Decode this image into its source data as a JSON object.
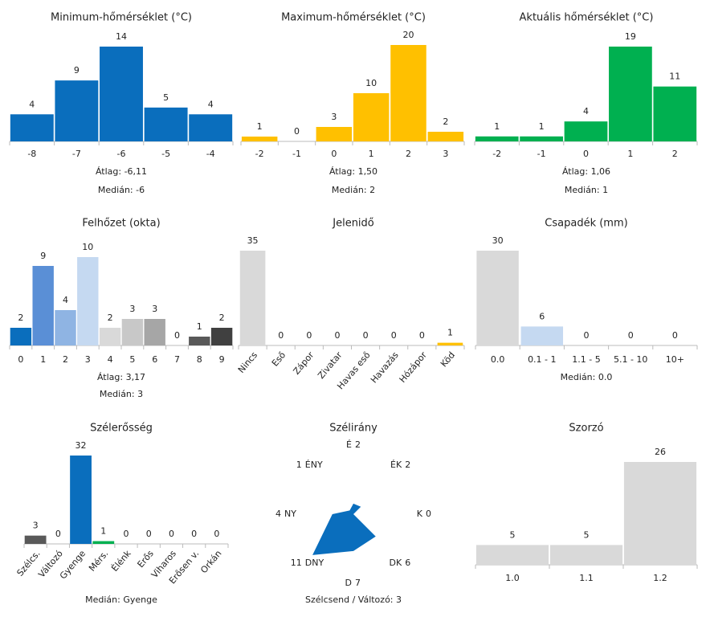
{
  "chart_data": [
    {
      "type": "bar",
      "title": "Minimum-hőmérséklet (°C)",
      "categories": [
        "-8",
        "-7",
        "-6",
        "-5",
        "-4"
      ],
      "values": [
        4,
        9,
        14,
        5,
        4
      ],
      "colors": [
        "#0a6ebd",
        "#0a6ebd",
        "#0a6ebd",
        "#0a6ebd",
        "#0a6ebd"
      ],
      "stats": [
        "Átlag: -6,11",
        "Medián: -6"
      ]
    },
    {
      "type": "bar",
      "title": "Maximum-hőmérséklet (°C)",
      "categories": [
        "-2",
        "-1",
        "0",
        "1",
        "2",
        "3"
      ],
      "values": [
        1,
        0,
        3,
        10,
        20,
        2
      ],
      "colors": [
        "#ffc000",
        "#ffc000",
        "#ffc000",
        "#ffc000",
        "#ffc000",
        "#ffc000"
      ],
      "stats": [
        "Átlag: 1,50",
        "Medián: 2"
      ]
    },
    {
      "type": "bar",
      "title": "Aktuális hőmérséklet (°C)",
      "categories": [
        "-2",
        "-1",
        "0",
        "1",
        "2"
      ],
      "values": [
        1,
        1,
        4,
        19,
        11
      ],
      "colors": [
        "#00b050",
        "#00b050",
        "#00b050",
        "#00b050",
        "#00b050"
      ],
      "stats": [
        "Átlag: 1,06",
        "Medián: 1"
      ]
    },
    {
      "type": "bar",
      "title": "Felhőzet (okta)",
      "categories": [
        "0",
        "1",
        "2",
        "3",
        "4",
        "5",
        "6",
        "7",
        "8",
        "9"
      ],
      "values": [
        2,
        9,
        4,
        10,
        2,
        3,
        3,
        0,
        1,
        2
      ],
      "colors": [
        "#0a6ebd",
        "#5a8fd6",
        "#8fb4e3",
        "#c5d9f1",
        "#d9d9d9",
        "#c8c8c8",
        "#a6a6a6",
        "#808080",
        "#595959",
        "#404040"
      ],
      "stats": [
        "Átlag: 3,17",
        "Medián: 3"
      ]
    },
    {
      "type": "bar",
      "title": "Jelenidő",
      "categories": [
        "Nincs",
        "Eső",
        "Zápor",
        "Zivatar",
        "Havas eső",
        "Havazás",
        "Hózápor",
        "Köd"
      ],
      "values": [
        35,
        0,
        0,
        0,
        0,
        0,
        0,
        1
      ],
      "colors": [
        "#d9d9d9",
        "#d9d9d9",
        "#d9d9d9",
        "#d9d9d9",
        "#d9d9d9",
        "#d9d9d9",
        "#d9d9d9",
        "#ffc000"
      ],
      "stats": []
    },
    {
      "type": "bar",
      "title": "Csapadék (mm)",
      "categories": [
        "0.0",
        "0.1 - 1",
        "1.1 - 5",
        "5.1 - 10",
        "10+"
      ],
      "values": [
        30,
        6,
        0,
        0,
        0
      ],
      "colors": [
        "#d9d9d9",
        "#c5d9f1",
        "#d9d9d9",
        "#d9d9d9",
        "#d9d9d9"
      ],
      "stats": [
        "Medián: 0.0"
      ]
    },
    {
      "type": "bar",
      "title": "Szélerősség",
      "categories": [
        "Szélcs.",
        "Változó",
        "Gyenge",
        "Mérs.",
        "Élénk",
        "Erős",
        "Viharos",
        "Erősen v.",
        "Orkán"
      ],
      "values": [
        3,
        0,
        32,
        1,
        0,
        0,
        0,
        0,
        0
      ],
      "colors": [
        "#595959",
        "#595959",
        "#0a6ebd",
        "#00b050",
        "#d9d9d9",
        "#d9d9d9",
        "#d9d9d9",
        "#d9d9d9",
        "#d9d9d9"
      ],
      "stats": [
        "Medián: Gyenge"
      ]
    },
    {
      "type": "radar",
      "title": "Szélirány",
      "categories": [
        "É",
        "ÉK",
        "K",
        "DK",
        "D",
        "DNY",
        "NY",
        "ÉNY"
      ],
      "values": [
        2,
        2,
        0,
        6,
        7,
        11,
        4,
        1
      ],
      "color": "#0a6ebd",
      "stats": [
        "Szélcsend / Változó: 3"
      ]
    },
    {
      "type": "bar",
      "title": "Szorzó",
      "categories": [
        "1.0",
        "1.1",
        "1.2"
      ],
      "values": [
        5,
        5,
        26
      ],
      "colors": [
        "#d9d9d9",
        "#d9d9d9",
        "#d9d9d9"
      ],
      "stats": []
    }
  ]
}
